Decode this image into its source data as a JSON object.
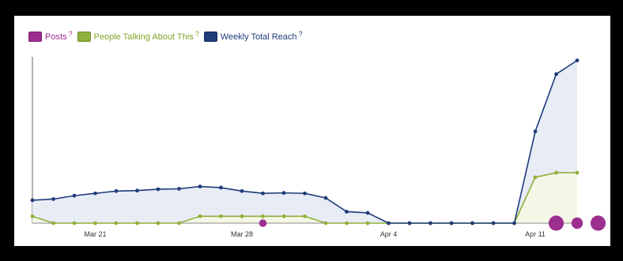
{
  "legend": {
    "posts_label": "Posts",
    "talking_label": "People Talking About This",
    "reach_label": "Weekly Total Reach",
    "help_mark": "?"
  },
  "colors": {
    "posts": "#9c2f8f",
    "talking": "#8fb03a",
    "reach": "#1f3b7a",
    "reach_fill": "#e8ecf5",
    "talking_fill": "#f5f7e6"
  },
  "chart_data": {
    "type": "line",
    "x_tick_labels": [
      "Mar 21",
      "Mar 28",
      "Apr 4",
      "Apr 11"
    ],
    "series": [
      {
        "name": "Weekly Total Reach",
        "values": [
          10,
          10.5,
          12,
          13,
          14,
          14.2,
          14.8,
          15,
          16,
          15.5,
          14,
          13,
          13.2,
          13,
          11,
          5,
          4.5,
          0,
          0,
          0,
          0,
          0,
          0,
          0,
          40,
          65,
          71
        ]
      },
      {
        "name": "People Talking About This",
        "values": [
          3,
          0,
          0,
          0,
          0,
          0,
          0,
          0,
          3,
          3,
          3,
          3,
          3,
          3,
          0,
          0,
          0,
          0,
          0,
          0,
          0,
          0,
          0,
          0,
          20,
          22,
          22
        ]
      },
      {
        "name": "Posts",
        "points": [
          {
            "index": 11,
            "size": 1
          },
          {
            "index": 25,
            "size": 2
          },
          {
            "index": 26,
            "size": 1.5
          },
          {
            "index": 27,
            "size": 2
          }
        ]
      }
    ],
    "ylim": [
      0,
      75
    ],
    "grid": false,
    "legend_position": "top-left"
  }
}
